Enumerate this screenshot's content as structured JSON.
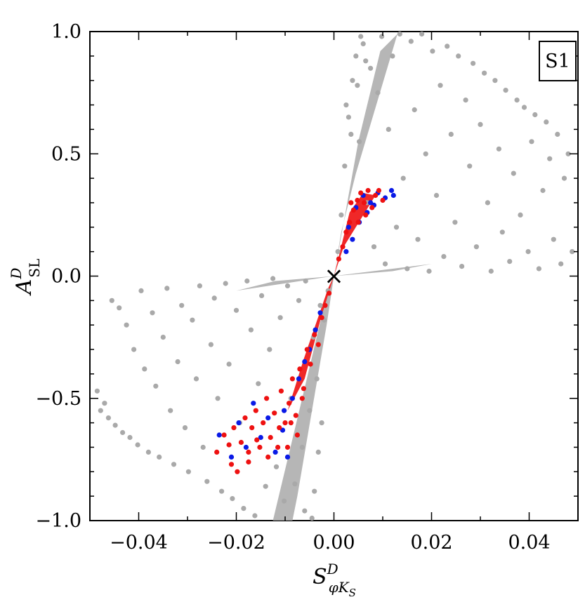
{
  "chart_data": {
    "type": "scatter",
    "panel_label": "S1",
    "xlabel": {
      "main": "S",
      "sup": "D",
      "sub": "φK",
      "subsub": "S"
    },
    "ylabel": {
      "main": "A",
      "sup": "D",
      "sub": "SL"
    },
    "xlim": [
      -0.05,
      0.05
    ],
    "ylim": [
      -1.0,
      1.0
    ],
    "x_ticks": [
      -0.04,
      -0.02,
      0.0,
      0.02,
      0.04
    ],
    "x_tick_labels": [
      "−0.04",
      "−0.02",
      "0.00",
      "0.02",
      "0.04"
    ],
    "y_ticks": [
      -1.0,
      -0.5,
      0.0,
      0.5,
      1.0
    ],
    "y_tick_labels": [
      "−1.0",
      "−0.5",
      "0.0",
      "0.5",
      "1.0"
    ],
    "grid": false,
    "marker": {
      "x": 0.0,
      "y": 0.0,
      "symbol": "×"
    },
    "colors": {
      "gray": "#a9a9a9",
      "blue": "#0a1ae6",
      "red": "#ee1111"
    },
    "series": [
      {
        "color": "gray",
        "points": [
          [
            -0.0485,
            -0.47
          ],
          [
            -0.0478,
            -0.55
          ],
          [
            -0.047,
            -0.52
          ],
          [
            -0.0462,
            -0.58
          ],
          [
            -0.0455,
            -0.1
          ],
          [
            -0.0448,
            -0.61
          ],
          [
            -0.044,
            -0.13
          ],
          [
            -0.0433,
            -0.64
          ],
          [
            -0.0425,
            -0.2
          ],
          [
            -0.0418,
            -0.66
          ],
          [
            -0.041,
            -0.3
          ],
          [
            -0.0402,
            -0.69
          ],
          [
            -0.0395,
            -0.06
          ],
          [
            -0.0388,
            -0.38
          ],
          [
            -0.038,
            -0.72
          ],
          [
            -0.0372,
            -0.15
          ],
          [
            -0.0365,
            -0.45
          ],
          [
            -0.0358,
            -0.74
          ],
          [
            -0.035,
            -0.25
          ],
          [
            -0.0342,
            -0.05
          ],
          [
            -0.0335,
            -0.55
          ],
          [
            -0.0328,
            -0.77
          ],
          [
            -0.032,
            -0.35
          ],
          [
            -0.0312,
            -0.12
          ],
          [
            -0.0305,
            -0.62
          ],
          [
            -0.0298,
            -0.8
          ],
          [
            -0.029,
            -0.18
          ],
          [
            -0.0282,
            -0.42
          ],
          [
            -0.0275,
            -0.04
          ],
          [
            -0.0268,
            -0.7
          ],
          [
            -0.026,
            -0.84
          ],
          [
            -0.0252,
            -0.28
          ],
          [
            -0.0245,
            -0.09
          ],
          [
            -0.0238,
            -0.5
          ],
          [
            -0.023,
            -0.88
          ],
          [
            -0.0222,
            -0.03
          ],
          [
            -0.0215,
            -0.36
          ],
          [
            -0.0208,
            -0.91
          ],
          [
            -0.02,
            -0.14
          ],
          [
            -0.0193,
            -0.6
          ],
          [
            -0.0185,
            -0.95
          ],
          [
            -0.0178,
            -0.02
          ],
          [
            -0.017,
            -0.22
          ],
          [
            -0.0162,
            -0.98
          ],
          [
            -0.0155,
            -0.44
          ],
          [
            -0.0148,
            -0.08
          ],
          [
            -0.014,
            -0.86
          ],
          [
            -0.0132,
            -0.3
          ],
          [
            -0.0125,
            -0.01
          ],
          [
            -0.0118,
            -0.78
          ],
          [
            -0.011,
            -0.17
          ],
          [
            -0.0102,
            -0.92
          ],
          [
            -0.0095,
            -0.04
          ],
          [
            -0.0088,
            -0.5
          ],
          [
            -0.008,
            -0.85
          ],
          [
            -0.0072,
            -0.1
          ],
          [
            -0.0065,
            -0.7
          ],
          [
            -0.0058,
            -0.02
          ],
          [
            -0.005,
            -0.55
          ],
          [
            -0.0042,
            -0.25
          ],
          [
            -0.0035,
            -0.42
          ],
          [
            -0.0028,
            -0.12
          ],
          [
            -0.002,
            -0.18
          ],
          [
            -0.0012,
            -0.06
          ],
          [
            0.0008,
            0.1
          ],
          [
            0.0015,
            0.25
          ],
          [
            0.0022,
            0.45
          ],
          [
            0.003,
            0.65
          ],
          [
            0.0038,
            0.8
          ],
          [
            0.0045,
            0.9
          ],
          [
            0.0052,
            0.55
          ],
          [
            0.006,
            0.95
          ],
          [
            0.0068,
            0.3
          ],
          [
            0.0075,
            0.85
          ],
          [
            0.0082,
            0.12
          ],
          [
            0.009,
            0.75
          ],
          [
            0.0098,
            0.98
          ],
          [
            0.0105,
            0.05
          ],
          [
            0.0112,
            0.6
          ],
          [
            0.012,
            0.9
          ],
          [
            0.0128,
            0.2
          ],
          [
            0.0135,
            0.99
          ],
          [
            0.0142,
            0.4
          ],
          [
            0.015,
            0.03
          ],
          [
            0.0158,
            0.96
          ],
          [
            0.0165,
            0.68
          ],
          [
            0.0172,
            0.15
          ],
          [
            0.018,
            0.99
          ],
          [
            0.0188,
            0.5
          ],
          [
            0.0195,
            0.02
          ],
          [
            0.0202,
            0.92
          ],
          [
            0.021,
            0.33
          ],
          [
            0.0218,
            0.78
          ],
          [
            0.0225,
            0.08
          ],
          [
            0.0232,
            0.94
          ],
          [
            0.024,
            0.58
          ],
          [
            0.0248,
            0.22
          ],
          [
            0.0255,
            0.9
          ],
          [
            0.0262,
            0.04
          ],
          [
            0.027,
            0.72
          ],
          [
            0.0278,
            0.45
          ],
          [
            0.0285,
            0.87
          ],
          [
            0.0292,
            0.12
          ],
          [
            0.03,
            0.62
          ],
          [
            0.0308,
            0.83
          ],
          [
            0.0315,
            0.3
          ],
          [
            0.0322,
            0.02
          ],
          [
            0.033,
            0.8
          ],
          [
            0.0338,
            0.52
          ],
          [
            0.0345,
            0.18
          ],
          [
            0.0352,
            0.76
          ],
          [
            0.036,
            0.06
          ],
          [
            0.0368,
            0.42
          ],
          [
            0.0375,
            0.72
          ],
          [
            0.0382,
            0.25
          ],
          [
            0.039,
            0.69
          ],
          [
            0.0398,
            0.1
          ],
          [
            0.0405,
            0.55
          ],
          [
            0.0412,
            0.66
          ],
          [
            0.042,
            0.03
          ],
          [
            0.0428,
            0.35
          ],
          [
            0.0435,
            0.63
          ],
          [
            0.0442,
            0.48
          ],
          [
            0.045,
            0.15
          ],
          [
            0.0458,
            0.58
          ],
          [
            0.0465,
            0.05
          ],
          [
            0.0472,
            0.4
          ],
          [
            0.048,
            0.5
          ],
          [
            0.0488,
            0.1
          ],
          [
            -0.0032,
            -0.72
          ],
          [
            -0.0025,
            -0.6
          ],
          [
            -0.004,
            -0.88
          ],
          [
            -0.006,
            -0.96
          ],
          [
            -0.0045,
            -0.99
          ],
          [
            0.0025,
            0.7
          ],
          [
            0.0035,
            0.58
          ],
          [
            0.0048,
            0.78
          ],
          [
            0.0065,
            0.88
          ],
          [
            0.0055,
            0.98
          ]
        ]
      },
      {
        "color": "blue",
        "points": [
          [
            -0.0235,
            -0.65
          ],
          [
            -0.021,
            -0.74
          ],
          [
            -0.0195,
            -0.6
          ],
          [
            -0.018,
            -0.7
          ],
          [
            -0.0165,
            -0.52
          ],
          [
            -0.015,
            -0.66
          ],
          [
            -0.0135,
            -0.58
          ],
          [
            -0.012,
            -0.72
          ],
          [
            -0.0105,
            -0.63
          ],
          [
            -0.0095,
            -0.74
          ],
          [
            -0.0085,
            -0.5
          ],
          [
            -0.0072,
            -0.42
          ],
          [
            -0.006,
            -0.35
          ],
          [
            -0.005,
            -0.3
          ],
          [
            -0.0038,
            -0.22
          ],
          [
            -0.0028,
            -0.15
          ],
          [
            0.003,
            0.2
          ],
          [
            0.0045,
            0.28
          ],
          [
            0.006,
            0.33
          ],
          [
            0.0075,
            0.3
          ],
          [
            0.009,
            0.34
          ],
          [
            0.0105,
            0.32
          ],
          [
            0.0118,
            0.35
          ],
          [
            0.0122,
            0.33
          ],
          [
            0.0052,
            0.22
          ],
          [
            0.0068,
            0.26
          ],
          [
            0.0082,
            0.29
          ],
          [
            0.0038,
            0.15
          ],
          [
            0.0025,
            0.1
          ],
          [
            -0.0102,
            -0.55
          ]
        ]
      },
      {
        "color": "red",
        "points": [
          [
            -0.024,
            -0.72
          ],
          [
            -0.0225,
            -0.65
          ],
          [
            -0.021,
            -0.77
          ],
          [
            -0.0198,
            -0.8
          ],
          [
            -0.019,
            -0.68
          ],
          [
            -0.0182,
            -0.58
          ],
          [
            -0.0175,
            -0.72
          ],
          [
            -0.0168,
            -0.62
          ],
          [
            -0.016,
            -0.55
          ],
          [
            -0.0152,
            -0.7
          ],
          [
            -0.0145,
            -0.6
          ],
          [
            -0.0138,
            -0.5
          ],
          [
            -0.013,
            -0.66
          ],
          [
            -0.0122,
            -0.56
          ],
          [
            -0.0115,
            -0.7
          ],
          [
            -0.0108,
            -0.47
          ],
          [
            -0.01,
            -0.6
          ],
          [
            -0.0092,
            -0.52
          ],
          [
            -0.0085,
            -0.42
          ],
          [
            -0.0078,
            -0.57
          ],
          [
            -0.007,
            -0.38
          ],
          [
            -0.0062,
            -0.46
          ],
          [
            -0.0055,
            -0.3
          ],
          [
            -0.0048,
            -0.36
          ],
          [
            -0.004,
            -0.24
          ],
          [
            -0.0032,
            -0.28
          ],
          [
            -0.0025,
            -0.17
          ],
          [
            -0.0018,
            -0.12
          ],
          [
            -0.001,
            -0.07
          ],
          [
            0.001,
            0.07
          ],
          [
            0.0018,
            0.12
          ],
          [
            0.0025,
            0.18
          ],
          [
            0.0032,
            0.22
          ],
          [
            0.004,
            0.27
          ],
          [
            0.0048,
            0.31
          ],
          [
            0.0055,
            0.34
          ],
          [
            0.0062,
            0.3
          ],
          [
            0.007,
            0.35
          ],
          [
            0.0078,
            0.28
          ],
          [
            0.0085,
            0.33
          ],
          [
            0.0092,
            0.35
          ],
          [
            0.01,
            0.31
          ],
          [
            0.0035,
            0.3
          ],
          [
            0.005,
            0.22
          ],
          [
            0.0065,
            0.25
          ],
          [
            -0.0075,
            -0.65
          ],
          [
            -0.0095,
            -0.7
          ],
          [
            -0.0135,
            -0.74
          ],
          [
            -0.0175,
            -0.76
          ],
          [
            -0.0215,
            -0.69
          ],
          [
            -0.0205,
            -0.62
          ],
          [
            -0.0158,
            -0.67
          ],
          [
            -0.0112,
            -0.62
          ],
          [
            -0.0088,
            -0.6
          ],
          [
            -0.0065,
            -0.5
          ]
        ]
      }
    ]
  }
}
